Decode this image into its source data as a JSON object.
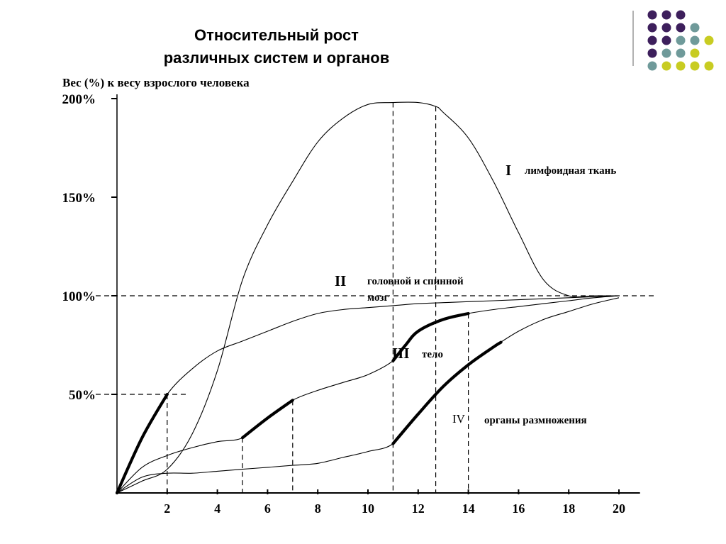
{
  "slide": {
    "title_line1": "Относительный рост",
    "title_line2": "различных систем и органов"
  },
  "decoration": {
    "dot_colors": [
      "#3d1f5c",
      "#6f9a9a",
      "#c8cc22"
    ],
    "rows": [
      [
        "#3d1f5c",
        "#3d1f5c",
        "#3d1f5c"
      ],
      [
        "#3d1f5c",
        "#3d1f5c",
        "#3d1f5c",
        "#6f9a9a"
      ],
      [
        "#3d1f5c",
        "#3d1f5c",
        "#6f9a9a",
        "#6f9a9a",
        "#c8cc22"
      ],
      [
        "#3d1f5c",
        "#6f9a9a",
        "#6f9a9a",
        "#c8cc22"
      ],
      [
        "#6f9a9a",
        "#c8cc22",
        "#c8cc22",
        "#c8cc22",
        "#c8cc22"
      ]
    ]
  },
  "chart_data": {
    "type": "line",
    "ylabel": "Вес (%) к весу взрослого человека",
    "xlim": [
      0,
      20.5
    ],
    "ylim": [
      0,
      200
    ],
    "x_ticks": [
      2,
      4,
      6,
      8,
      10,
      12,
      14,
      16,
      18,
      20
    ],
    "y_ticks": [
      {
        "value": 50,
        "label": "50%"
      },
      {
        "value": 100,
        "label": "100%"
      },
      {
        "value": 150,
        "label": "150%"
      },
      {
        "value": 200,
        "label": "200%"
      }
    ],
    "grid": false,
    "series": [
      {
        "numeral": "I",
        "name": "лимфоидная ткань",
        "x": [
          0,
          1,
          2,
          3,
          4,
          5,
          6,
          7,
          8,
          9,
          10,
          11,
          12,
          12.7,
          13,
          14,
          15,
          16,
          17,
          18,
          19,
          20
        ],
        "y": [
          0,
          6,
          12,
          30,
          62,
          108,
          136,
          158,
          178,
          190,
          197,
          198,
          198,
          196,
          193,
          180,
          158,
          132,
          108,
          100,
          100,
          100
        ]
      },
      {
        "numeral": "II",
        "name": "головной и спинной мозг",
        "x": [
          0,
          1,
          2,
          3,
          4,
          5,
          6,
          7,
          8,
          9,
          10,
          11,
          12,
          13,
          14,
          15,
          16,
          17,
          18,
          19,
          20
        ],
        "y": [
          0,
          28,
          50,
          63,
          72,
          77,
          82,
          87,
          91,
          93,
          94,
          95,
          96,
          96.5,
          97,
          97.5,
          98,
          98.5,
          99,
          99.5,
          100
        ]
      },
      {
        "numeral": "III",
        "name": "тело",
        "x": [
          0,
          1,
          2,
          3,
          4,
          5,
          6,
          7,
          8,
          9,
          10,
          11,
          11.5,
          12,
          13,
          14,
          15,
          16,
          17,
          18,
          19,
          20
        ],
        "y": [
          0,
          13,
          19,
          23,
          26,
          28,
          38,
          47,
          52,
          56,
          60,
          67,
          75,
          82,
          88,
          91,
          93,
          94.5,
          96,
          97.5,
          99,
          100
        ]
      },
      {
        "numeral": "IV",
        "name": "органы размножения",
        "x": [
          0,
          1,
          2,
          3,
          4,
          5,
          6,
          7,
          8,
          9,
          10,
          11,
          12,
          13,
          14,
          15,
          16,
          17,
          18,
          19,
          20
        ],
        "y": [
          0,
          8,
          10,
          10,
          11,
          12,
          13,
          14,
          15,
          18,
          21,
          25,
          40,
          54,
          65,
          74,
          82,
          88,
          92,
          96,
          99
        ]
      }
    ],
    "bold_segments": [
      {
        "series": 1,
        "x_from": 0,
        "x_to": 2
      },
      {
        "series": 2,
        "x_from": 5,
        "x_to": 7
      },
      {
        "series": 2,
        "x_from": 11,
        "x_to": 14
      },
      {
        "series": 3,
        "x_from": 11,
        "x_to": 15.3
      }
    ],
    "guide_lines": [
      {
        "x": 2,
        "y_top": 50
      },
      {
        "x": 5,
        "y_top": 28
      },
      {
        "x": 7,
        "y_top": 47
      },
      {
        "x": 11,
        "y_top": 198
      },
      {
        "x": 12.7,
        "y_top": 196
      },
      {
        "x": 14,
        "y_top": 91
      },
      {
        "y": 100,
        "x_right": 20.6
      },
      {
        "y": 50,
        "x_right": 2
      }
    ]
  }
}
